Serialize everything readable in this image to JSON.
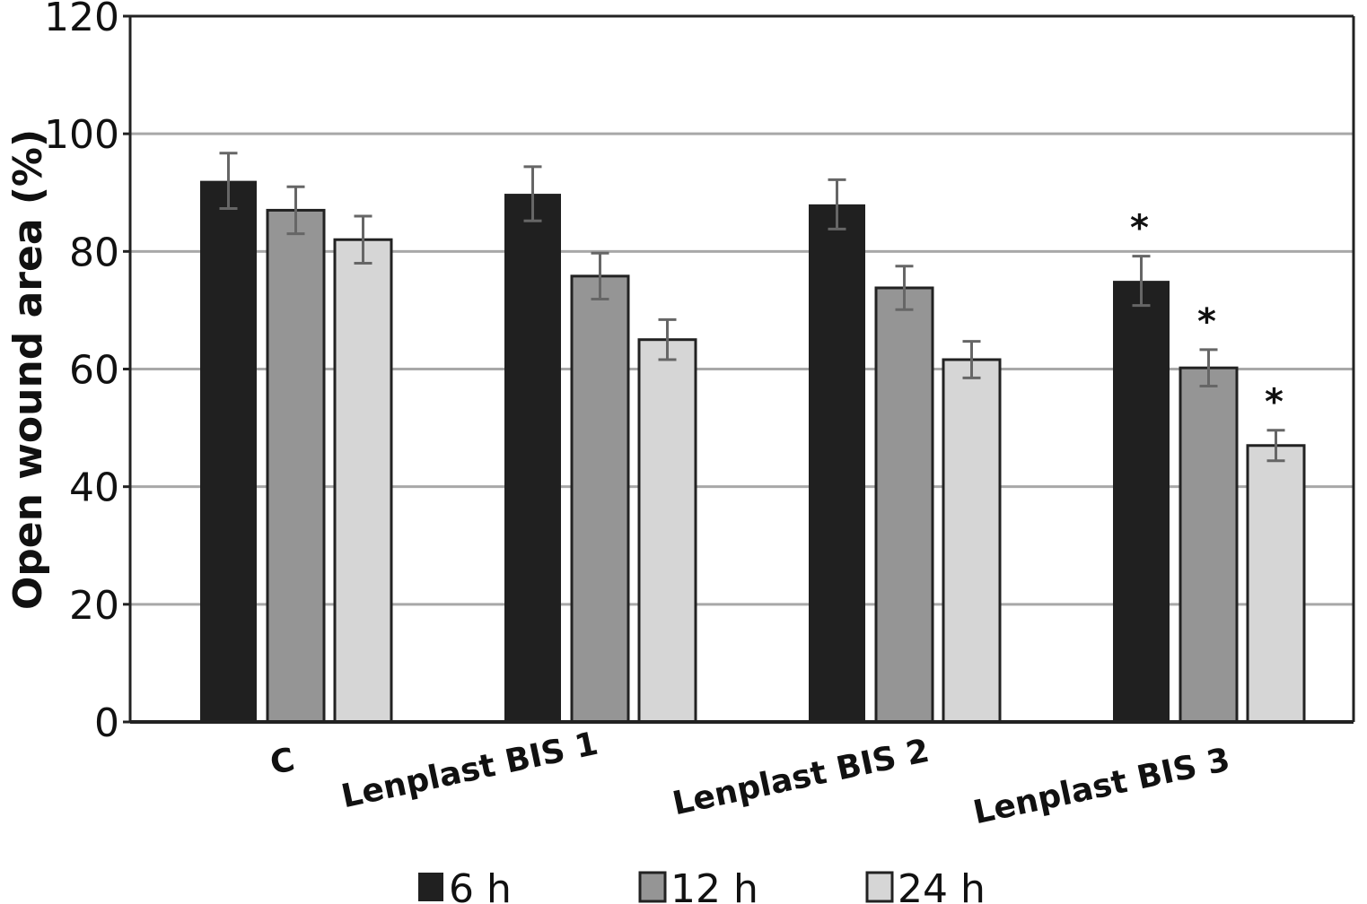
{
  "chart_data": {
    "type": "bar",
    "title": "",
    "xlabel": "",
    "ylabel": "Open wound area (%)",
    "ylim": [
      0,
      120
    ],
    "yticks": [
      0,
      20,
      40,
      60,
      80,
      100,
      120
    ],
    "grid": true,
    "legend_position": "bottom",
    "categories": [
      "C",
      "Lenplast BIS 1",
      "Lenplast BIS 2",
      "Lenplast BIS 3"
    ],
    "series": [
      {
        "name": "6 h",
        "color": "#202020",
        "values": [
          92,
          89.8,
          88,
          75
        ],
        "errors": [
          4.7,
          4.6,
          4.2,
          4.2
        ],
        "significant": [
          false,
          false,
          false,
          true
        ]
      },
      {
        "name": "12 h",
        "color": "#959595",
        "values": [
          87,
          75.8,
          73.8,
          60.2
        ],
        "errors": [
          4,
          3.9,
          3.7,
          3.1
        ],
        "significant": [
          false,
          false,
          false,
          true
        ]
      },
      {
        "name": "24 h",
        "color": "#d6d6d6",
        "values": [
          82,
          65,
          61.6,
          47
        ],
        "errors": [
          4,
          3.4,
          3.1,
          2.6
        ],
        "significant": [
          false,
          false,
          false,
          true
        ]
      }
    ],
    "significance_marker": "*"
  }
}
